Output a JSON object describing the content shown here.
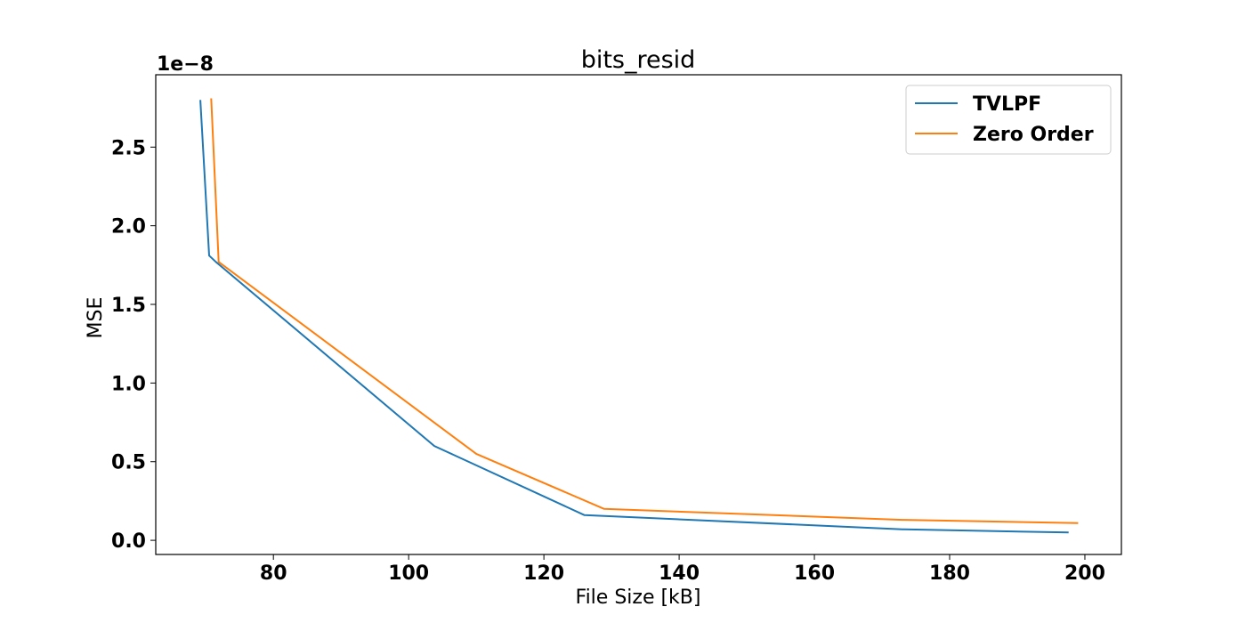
{
  "chart_data": {
    "type": "line",
    "title": "bits_resid",
    "xlabel": "File Size [kB]",
    "ylabel": "MSE",
    "y_offset_label": "1e−8",
    "xlim": [
      62.6,
      205.4
    ],
    "ylim": [
      -0.09,
      2.96
    ],
    "x_ticks": [
      80,
      100,
      120,
      140,
      160,
      180,
      200
    ],
    "x_tick_labels": [
      "80",
      "100",
      "120",
      "140",
      "160",
      "180",
      "200"
    ],
    "y_ticks": [
      0.0,
      0.5,
      1.0,
      1.5,
      2.0,
      2.5
    ],
    "y_tick_labels": [
      "0.0",
      "0.5",
      "1.0",
      "1.5",
      "2.0",
      "2.5"
    ],
    "grid": false,
    "legend_position": "top-right",
    "series": [
      {
        "name": "TVLPF",
        "color": "#1f77b4",
        "x": [
          69.2,
          70.5,
          71.5,
          103.8,
          126.0,
          173.0,
          197.6
        ],
        "y": [
          2.8,
          1.81,
          1.77,
          0.6,
          0.16,
          0.07,
          0.05
        ]
      },
      {
        "name": "Zero Order",
        "color": "#ff7f0e",
        "x": [
          70.8,
          71.9,
          110.0,
          128.9,
          173.0,
          199.0
        ],
        "y": [
          2.81,
          1.77,
          0.55,
          0.2,
          0.13,
          0.11
        ]
      }
    ]
  }
}
